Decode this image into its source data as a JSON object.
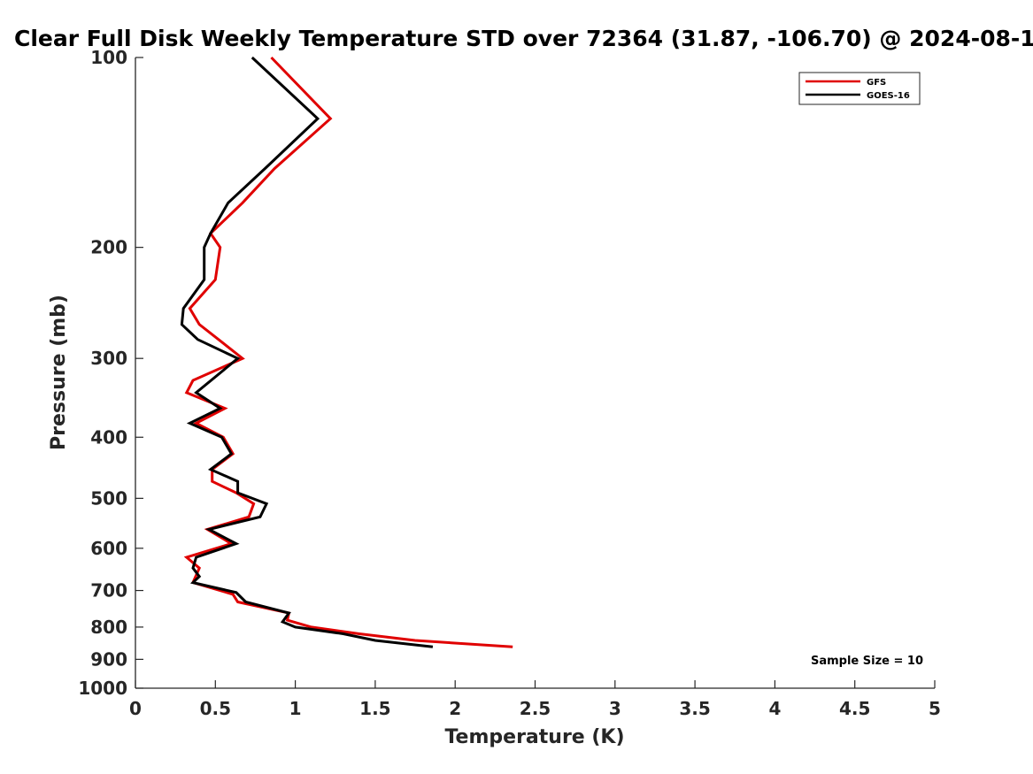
{
  "chart_data": {
    "type": "line",
    "title": "Clear Full Disk Weekly Temperature STD over 72364 (31.87, -106.70) @ 2024-08-1",
    "xlabel": "Temperature (K)",
    "ylabel": "Pressure (mb)",
    "xlim": [
      0,
      5
    ],
    "ylim": [
      100,
      1000
    ],
    "y_scale": "log",
    "y_reversed": true,
    "x_ticks": [
      "0",
      "0.5",
      "1",
      "1.5",
      "2",
      "2.5",
      "3",
      "3.5",
      "4",
      "4.5",
      "5"
    ],
    "y_ticks": [
      "100",
      "200",
      "300",
      "400",
      "500",
      "600",
      "700",
      "800",
      "900",
      "1000"
    ],
    "grid": false,
    "legend_position": "top-right",
    "annotation": "Sample Size = 10",
    "series": [
      {
        "name": "GFS",
        "color": "#e00000",
        "points": [
          [
            0.85,
            100
          ],
          [
            1.22,
            125
          ],
          [
            0.87,
            150
          ],
          [
            0.67,
            170
          ],
          [
            0.47,
            190
          ],
          [
            0.53,
            200
          ],
          [
            0.5,
            225
          ],
          [
            0.34,
            250
          ],
          [
            0.4,
            265
          ],
          [
            0.52,
            280
          ],
          [
            0.67,
            300
          ],
          [
            0.36,
            325
          ],
          [
            0.32,
            340
          ],
          [
            0.56,
            360
          ],
          [
            0.38,
            380
          ],
          [
            0.55,
            400
          ],
          [
            0.61,
            425
          ],
          [
            0.48,
            450
          ],
          [
            0.48,
            470
          ],
          [
            0.63,
            490
          ],
          [
            0.74,
            510
          ],
          [
            0.71,
            535
          ],
          [
            0.45,
            560
          ],
          [
            0.6,
            590
          ],
          [
            0.32,
            620
          ],
          [
            0.4,
            645
          ],
          [
            0.36,
            680
          ],
          [
            0.61,
            710
          ],
          [
            0.64,
            730
          ],
          [
            0.96,
            760
          ],
          [
            0.95,
            780
          ],
          [
            1.1,
            800
          ],
          [
            1.4,
            820
          ],
          [
            1.75,
            840
          ],
          [
            2.36,
            860
          ]
        ]
      },
      {
        "name": "GOES-16",
        "color": "#000000",
        "points": [
          [
            0.73,
            100
          ],
          [
            1.14,
            125
          ],
          [
            0.81,
            150
          ],
          [
            0.58,
            170
          ],
          [
            0.47,
            190
          ],
          [
            0.43,
            200
          ],
          [
            0.43,
            225
          ],
          [
            0.3,
            250
          ],
          [
            0.29,
            265
          ],
          [
            0.39,
            280
          ],
          [
            0.64,
            300
          ],
          [
            0.38,
            340
          ],
          [
            0.53,
            360
          ],
          [
            0.34,
            380
          ],
          [
            0.54,
            400
          ],
          [
            0.6,
            425
          ],
          [
            0.47,
            450
          ],
          [
            0.64,
            470
          ],
          [
            0.64,
            490
          ],
          [
            0.82,
            510
          ],
          [
            0.78,
            535
          ],
          [
            0.46,
            560
          ],
          [
            0.63,
            590
          ],
          [
            0.38,
            620
          ],
          [
            0.36,
            645
          ],
          [
            0.4,
            665
          ],
          [
            0.36,
            680
          ],
          [
            0.63,
            705
          ],
          [
            0.69,
            730
          ],
          [
            0.96,
            760
          ],
          [
            0.92,
            785
          ],
          [
            1.0,
            800
          ],
          [
            1.3,
            820
          ],
          [
            1.5,
            840
          ],
          [
            1.86,
            860
          ]
        ]
      }
    ]
  }
}
